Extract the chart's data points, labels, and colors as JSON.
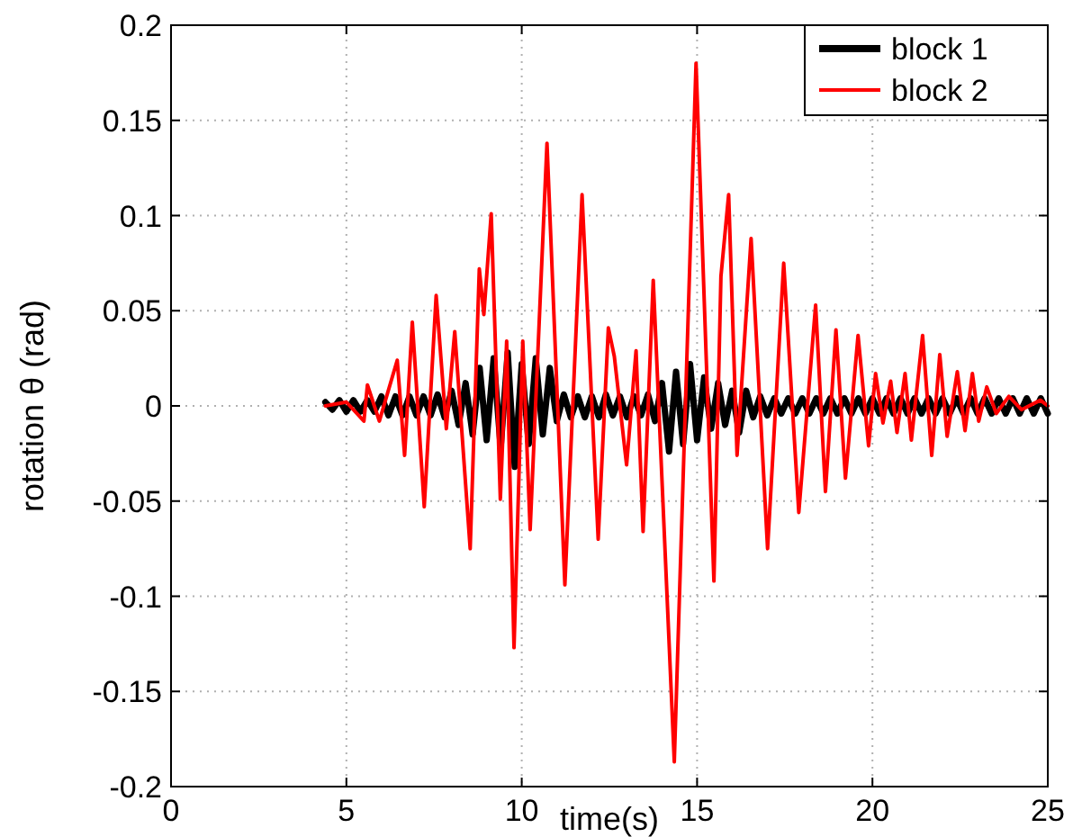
{
  "chart_data": {
    "type": "line",
    "xlabel": "time(s)",
    "ylabel": "rotation θ (rad)",
    "xlim": [
      0,
      25
    ],
    "xticks": [
      0,
      5,
      10,
      15,
      20,
      25
    ],
    "ylim": [
      -0.2,
      0.2
    ],
    "yticks": [
      -0.2,
      -0.15,
      -0.1,
      -0.05,
      0,
      0.05,
      0.1,
      0.15,
      0.2
    ],
    "grid": true,
    "legend": "top right",
    "line_style": "solid",
    "marker": "none",
    "series": [
      {
        "name": "block 1",
        "color": "#000000",
        "x": [
          4.4,
          4.6,
          4.8,
          5.0,
          5.2,
          5.4,
          5.6,
          5.8,
          6.0,
          6.2,
          6.4,
          6.6,
          6.8,
          7.0,
          7.2,
          7.4,
          7.6,
          7.8,
          8.0,
          8.2,
          8.4,
          8.6,
          8.8,
          9.0,
          9.2,
          9.4,
          9.6,
          9.8,
          10.0,
          10.2,
          10.4,
          10.6,
          10.8,
          11.0,
          11.2,
          11.4,
          11.6,
          11.8,
          12.0,
          12.2,
          12.4,
          12.6,
          12.8,
          13.0,
          13.2,
          13.4,
          13.6,
          13.8,
          14.0,
          14.2,
          14.4,
          14.6,
          14.8,
          15.0,
          15.2,
          15.4,
          15.6,
          15.8,
          16.0,
          16.2,
          16.4,
          16.6,
          16.8,
          17.0,
          17.2,
          17.4,
          17.6,
          17.8,
          18.0,
          18.2,
          18.4,
          18.6,
          18.8,
          19.0,
          19.2,
          19.4,
          19.6,
          19.8,
          20.0,
          20.2,
          20.4,
          20.6,
          20.8,
          21.0,
          21.2,
          21.4,
          21.6,
          21.8,
          22.0,
          22.2,
          22.4,
          22.6,
          22.8,
          23.0,
          23.2,
          23.4,
          23.6,
          23.8,
          24.0,
          24.2,
          24.4,
          24.6,
          24.8,
          25.0
        ],
        "values": [
          0.002,
          -0.002,
          0.003,
          -0.003,
          0.003,
          -0.003,
          0.003,
          -0.003,
          0.005,
          -0.005,
          0.005,
          -0.005,
          0.005,
          -0.005,
          0.005,
          -0.005,
          0.006,
          -0.006,
          0.008,
          -0.01,
          0.012,
          -0.015,
          0.02,
          -0.018,
          0.025,
          -0.022,
          0.028,
          -0.032,
          0.022,
          -0.02,
          0.025,
          -0.015,
          0.02,
          -0.008,
          0.006,
          -0.006,
          0.005,
          -0.006,
          0.005,
          -0.006,
          0.006,
          -0.005,
          0.005,
          -0.006,
          0.005,
          -0.005,
          0.006,
          -0.008,
          0.012,
          -0.024,
          0.018,
          -0.02,
          0.022,
          -0.018,
          0.015,
          -0.012,
          0.012,
          -0.01,
          0.008,
          -0.014,
          0.008,
          -0.006,
          0.005,
          -0.005,
          0.004,
          -0.004,
          0.004,
          -0.004,
          0.004,
          -0.004,
          0.004,
          -0.004,
          0.004,
          -0.004,
          0.004,
          -0.004,
          0.004,
          -0.004,
          0.004,
          -0.004,
          0.004,
          -0.004,
          0.004,
          -0.004,
          0.004,
          -0.004,
          0.004,
          -0.004,
          0.004,
          -0.004,
          0.004,
          -0.004,
          0.004,
          -0.004,
          0.004,
          -0.004,
          0.004,
          -0.004,
          0.004,
          -0.004,
          0.004,
          -0.004,
          0.004,
          -0.004
        ]
      },
      {
        "name": "block 2",
        "color": "#ff0000",
        "x": [
          4.4,
          5.0,
          5.5,
          5.6,
          5.94,
          6.45,
          6.66,
          6.88,
          7.22,
          7.56,
          7.85,
          8.09,
          8.53,
          8.79,
          8.92,
          9.13,
          9.39,
          9.57,
          9.78,
          10.03,
          10.24,
          10.72,
          11.23,
          11.72,
          12.18,
          12.47,
          12.64,
          12.99,
          13.26,
          13.46,
          13.75,
          14.35,
          14.97,
          15.48,
          15.68,
          15.9,
          16.14,
          16.54,
          17.01,
          17.47,
          17.9,
          18.38,
          18.66,
          18.96,
          19.23,
          19.59,
          19.89,
          20.09,
          20.3,
          20.52,
          20.7,
          20.93,
          21.11,
          21.43,
          21.69,
          21.92,
          22.13,
          22.42,
          22.64,
          22.85,
          23.03,
          23.26,
          23.53,
          23.89,
          24.25,
          24.79,
          25.0
        ],
        "values": [
          0,
          0.002,
          -0.008,
          0.011,
          -0.008,
          0.024,
          -0.026,
          0.044,
          -0.053,
          0.058,
          -0.012,
          0.039,
          -0.075,
          0.072,
          0.048,
          0.101,
          -0.049,
          0.034,
          -0.127,
          0.034,
          -0.065,
          0.138,
          -0.094,
          0.111,
          -0.07,
          0.041,
          0.026,
          -0.031,
          0.029,
          -0.066,
          0.066,
          -0.187,
          0.18,
          -0.092,
          0.068,
          0.111,
          -0.026,
          0.088,
          -0.075,
          0.075,
          -0.056,
          0.053,
          -0.045,
          0.04,
          -0.038,
          0.037,
          -0.021,
          0.017,
          -0.009,
          0.013,
          -0.014,
          0.017,
          -0.018,
          0.037,
          -0.026,
          0.027,
          -0.016,
          0.018,
          -0.013,
          0.017,
          -0.008,
          0.01,
          -0.004,
          0.005,
          -0.002,
          0.003,
          0
        ]
      }
    ]
  }
}
